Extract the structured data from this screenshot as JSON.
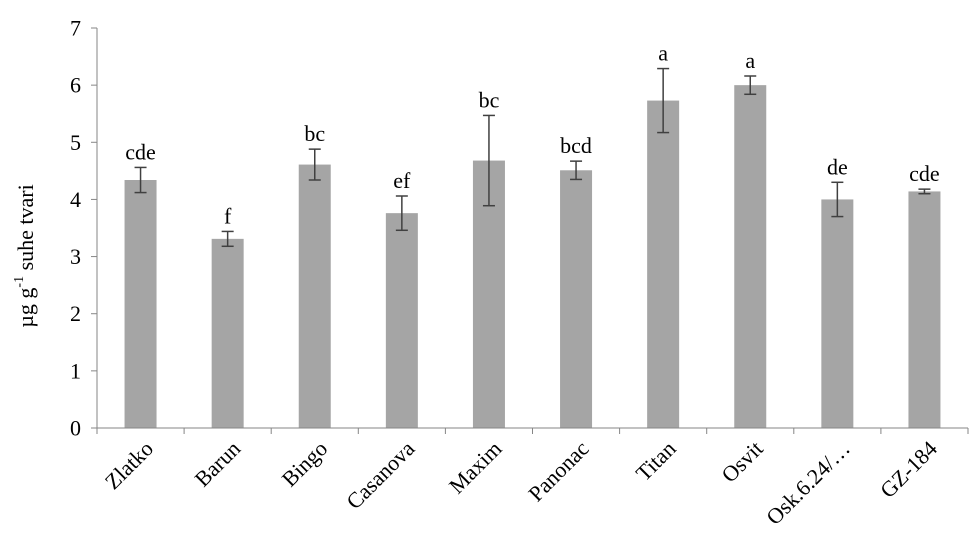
{
  "chart_data": {
    "type": "bar",
    "ylabel": {
      "pre": "µg g",
      "sup": "-1",
      "post": " suhe tvari"
    },
    "xlabel": "",
    "title": "",
    "ylim": [
      0,
      7
    ],
    "yticks": [
      "0",
      "1",
      "2",
      "3",
      "4",
      "5",
      "6",
      "7"
    ],
    "grid": false,
    "categories": [
      "Zlatko",
      "Barun",
      "Bingo",
      "Casanova",
      "Maxim",
      "Panonac",
      "Titan",
      "Osvit",
      "Osk.6.24/…",
      "GZ-184"
    ],
    "values": [
      4.34,
      3.31,
      4.61,
      3.76,
      4.68,
      4.51,
      5.73,
      6.0,
      4.0,
      4.14
    ],
    "errors": [
      0.22,
      0.13,
      0.27,
      0.3,
      0.79,
      0.16,
      0.56,
      0.16,
      0.3,
      0.04
    ],
    "significance": [
      "cde",
      "f",
      "bc",
      "ef",
      "bc",
      "bcd",
      "a",
      "a",
      "de",
      "cde"
    ],
    "colors": {
      "bar": "#a5a5a5",
      "error_bar": "#404040",
      "axis": "#868686"
    }
  }
}
